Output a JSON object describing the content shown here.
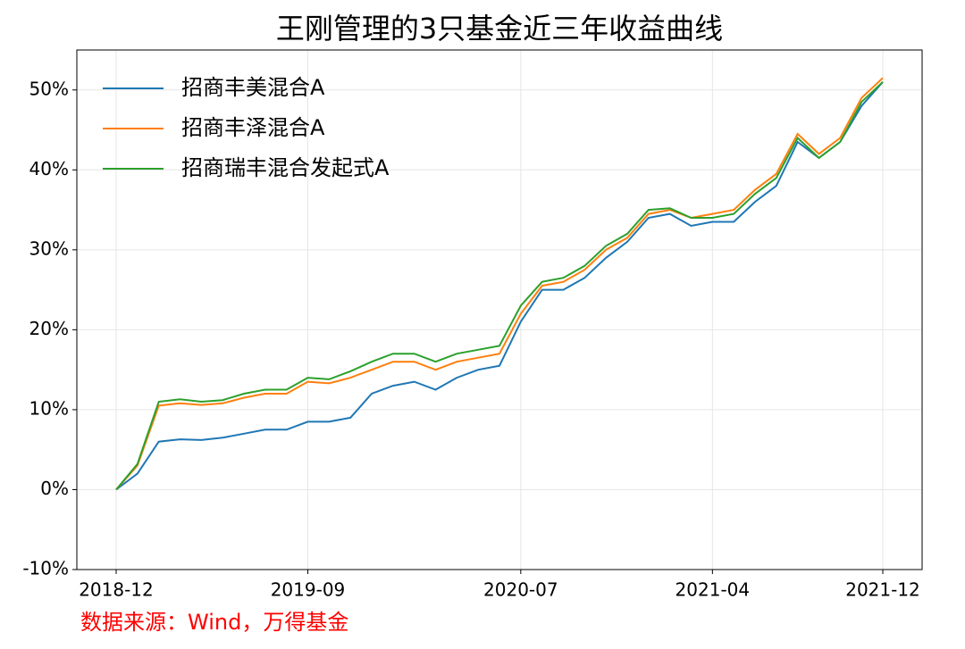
{
  "chart_data": {
    "type": "line",
    "title": "王刚管理的3只基金近三年收益曲线",
    "source": "数据来源：Wind，万得基金",
    "x": [
      "2018-12",
      "2019-01",
      "2019-02",
      "2019-03",
      "2019-04",
      "2019-05",
      "2019-06",
      "2019-07",
      "2019-08",
      "2019-09",
      "2019-10",
      "2019-11",
      "2019-12",
      "2020-01",
      "2020-02",
      "2020-03",
      "2020-04",
      "2020-05",
      "2020-06",
      "2020-07",
      "2020-08",
      "2020-09",
      "2020-10",
      "2020-11",
      "2020-12",
      "2021-01",
      "2021-02",
      "2021-03",
      "2021-04",
      "2021-05",
      "2021-06",
      "2021-07",
      "2021-08",
      "2021-09",
      "2021-10",
      "2021-11",
      "2021-12"
    ],
    "series": [
      {
        "name": "招商丰美混合A",
        "color": "#1f77b4",
        "values": [
          0,
          2,
          6,
          6.3,
          6.2,
          6.5,
          7,
          7.5,
          7.5,
          8.5,
          8.5,
          9,
          12,
          13,
          13.5,
          12.5,
          14,
          15,
          15.5,
          21,
          25,
          25,
          26.5,
          29,
          31,
          34,
          34.5,
          33,
          33.5,
          33.5,
          36,
          38,
          43.5,
          41.5,
          43.5,
          48,
          51
        ]
      },
      {
        "name": "招商丰泽混合A",
        "color": "#ff7f0e",
        "values": [
          0,
          3,
          10.5,
          10.8,
          10.6,
          10.8,
          11.5,
          12,
          12,
          13.5,
          13.3,
          14,
          15,
          16,
          16,
          15,
          16,
          16.5,
          17,
          22,
          25.5,
          26,
          27.5,
          30,
          31.5,
          34.5,
          35,
          34,
          34.5,
          35,
          37.5,
          39.5,
          44.5,
          42,
          44,
          49,
          51.5
        ]
      },
      {
        "name": "招商瑞丰混合发起式A",
        "color": "#2ca02c",
        "values": [
          0,
          3.2,
          11,
          11.3,
          11,
          11.2,
          12,
          12.5,
          12.5,
          14,
          13.8,
          14.8,
          16,
          17,
          17,
          16,
          17,
          17.5,
          18,
          23,
          26,
          26.5,
          28,
          30.5,
          32,
          35,
          35.2,
          34,
          34,
          34.5,
          37,
          39,
          44,
          41.5,
          43.5,
          48.5,
          51
        ]
      }
    ],
    "ylim": [
      -10,
      55
    ],
    "yticks": [
      {
        "value": -10,
        "label": "-10%"
      },
      {
        "value": 0,
        "label": "0%"
      },
      {
        "value": 10,
        "label": "10%"
      },
      {
        "value": 20,
        "label": "20%"
      },
      {
        "value": 30,
        "label": "30%"
      },
      {
        "value": 40,
        "label": "40%"
      },
      {
        "value": 50,
        "label": "50%"
      }
    ],
    "xticks": [
      "2018-12",
      "2019-09",
      "2020-07",
      "2021-04",
      "2021-12"
    ],
    "grid": true,
    "legend": "upper-left"
  }
}
